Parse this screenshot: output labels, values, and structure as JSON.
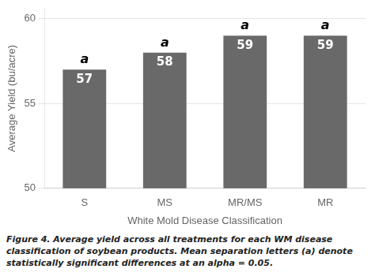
{
  "chart_data": {
    "type": "bar",
    "categories": [
      "S",
      "MS",
      "MR/MS",
      "MR"
    ],
    "values": [
      57,
      58,
      59,
      59
    ],
    "color": "#696969",
    "data_labels": true,
    "annotations": [
      "a",
      "a",
      "a",
      "a"
    ],
    "xlabel": "White Mold Disease Classification",
    "ylabel": "Average Yield (bu/acre)",
    "ylim": [
      50,
      60.6
    ],
    "yticks": [
      50,
      55,
      60
    ],
    "grid": true,
    "legend": false,
    "caption": [
      "Figure 4. Average yield across all treatments for each WM disease",
      "classification of soybean products. Mean separation letters (a) denote",
      "statistically significant differences at an alpha = 0.05."
    ]
  }
}
